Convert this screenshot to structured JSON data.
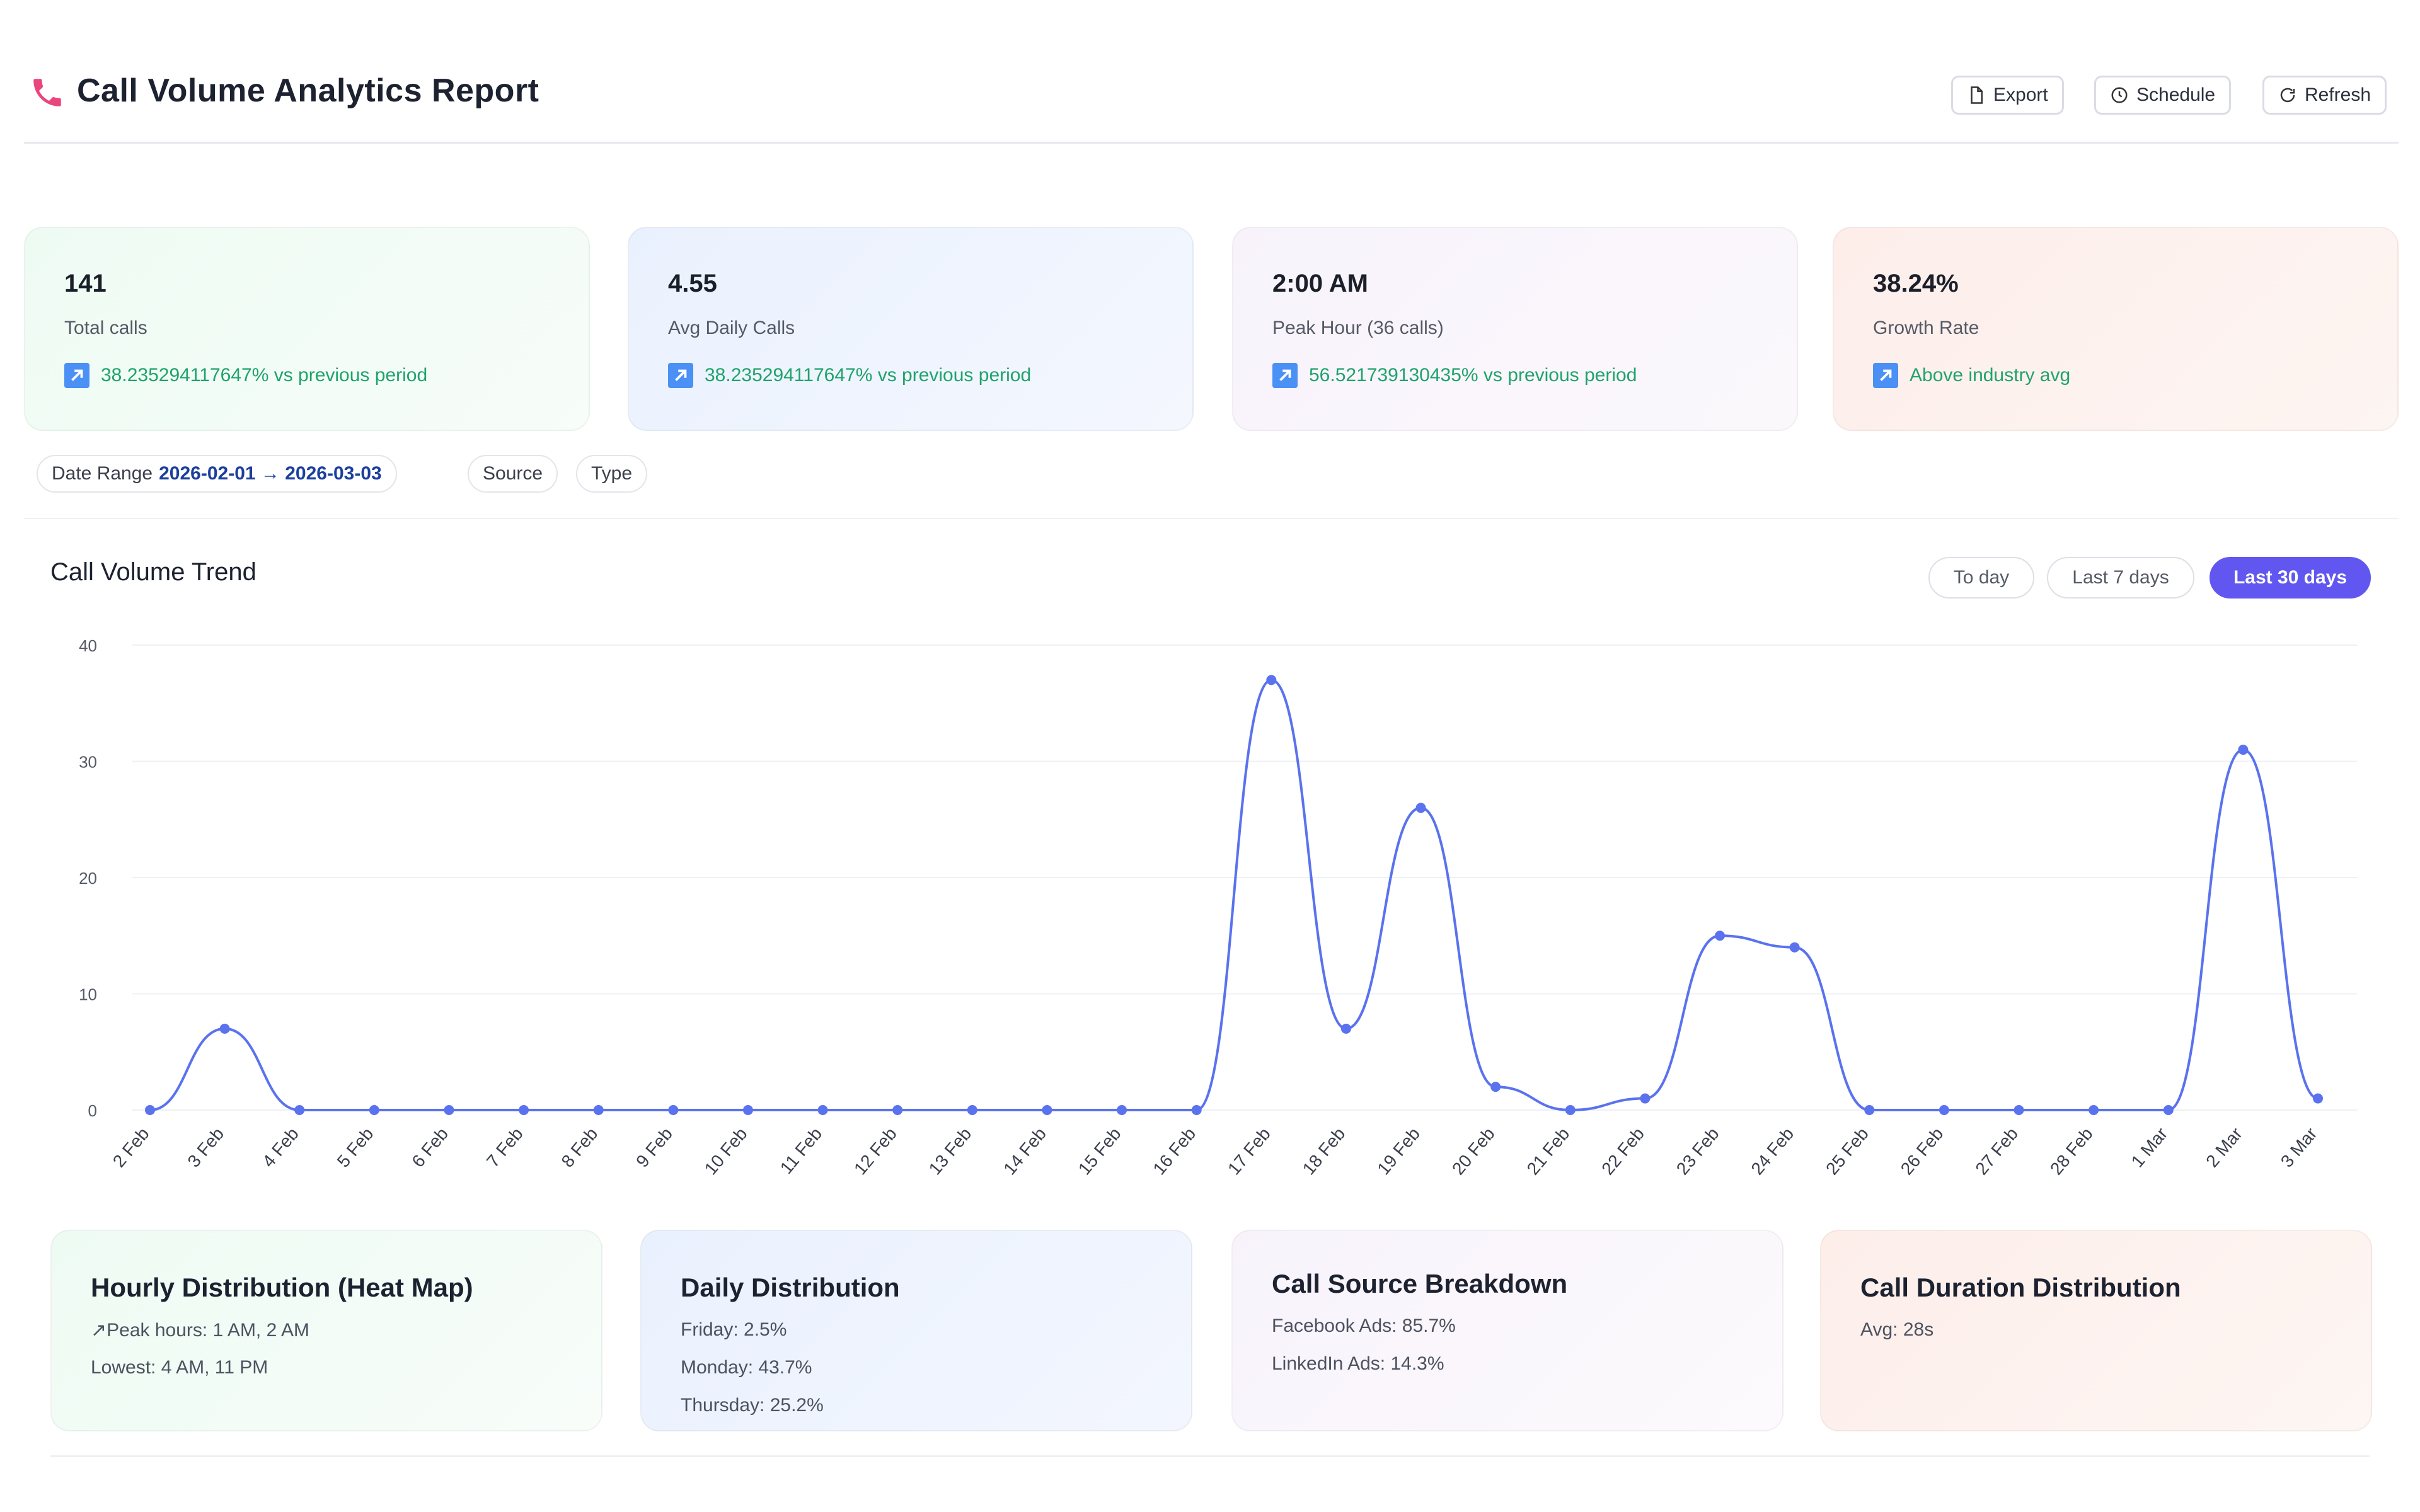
{
  "header": {
    "title": "Call Volume Analytics Report",
    "buttons": {
      "export": "Export",
      "schedule": "Schedule",
      "refresh": "Refresh"
    }
  },
  "kpis": [
    {
      "value": "141",
      "label": "Total calls",
      "trend": "38.235294117647% vs previous period"
    },
    {
      "value": "4.55",
      "label": "Avg Daily Calls",
      "trend": "38.235294117647% vs previous period"
    },
    {
      "value": "2:00 AM",
      "label": "Peak Hour (36 calls)",
      "trend": "56.521739130435% vs previous period"
    },
    {
      "value": "38.24%",
      "label": "Growth Rate",
      "trend": "Above industry avg"
    }
  ],
  "filters": {
    "date_range_label": "Date Range",
    "date_range_value": "2026-02-01 → 2026-03-03",
    "source": "Source",
    "type": "Type"
  },
  "chart_panel": {
    "title": "Call Volume Trend",
    "ranges": {
      "today": "To day",
      "last7": "Last 7 days",
      "last30": "Last 30 days"
    }
  },
  "chart_data": {
    "type": "line",
    "title": "Call Volume Trend",
    "xlabel": "",
    "ylabel": "",
    "ylim": [
      0,
      40
    ],
    "yticks": [
      0,
      10,
      20,
      30,
      40
    ],
    "grid": true,
    "categories": [
      "2 Feb",
      "3 Feb",
      "4 Feb",
      "5 Feb",
      "6 Feb",
      "7 Feb",
      "8 Feb",
      "9 Feb",
      "10 Feb",
      "11 Feb",
      "12 Feb",
      "13 Feb",
      "14 Feb",
      "15 Feb",
      "16 Feb",
      "17 Feb",
      "18 Feb",
      "19 Feb",
      "20 Feb",
      "21 Feb",
      "22 Feb",
      "23 Feb",
      "24 Feb",
      "25 Feb",
      "26 Feb",
      "27 Feb",
      "28 Feb",
      "1 Mar",
      "2 Mar",
      "3 Mar"
    ],
    "values": [
      0,
      7,
      0,
      0,
      0,
      0,
      0,
      0,
      0,
      0,
      0,
      0,
      0,
      0,
      0,
      37,
      7,
      26,
      2,
      0,
      1,
      15,
      14,
      0,
      0,
      0,
      0,
      0,
      31,
      1
    ],
    "color": "#5a72ee"
  },
  "bottom_cards": [
    {
      "title": "Hourly Distribution (Heat Map)",
      "lines": [
        "↗Peak hours: 1 AM, 2 AM",
        "Lowest: 4 AM, 11 PM"
      ]
    },
    {
      "title": "Daily Distribution",
      "lines": [
        "Friday: 2.5%",
        "Monday: 43.7%",
        "Thursday: 25.2%"
      ]
    },
    {
      "title": "Call Source Breakdown",
      "lines": [
        "Facebook Ads: 85.7%",
        "LinkedIn Ads: 14.3%"
      ]
    },
    {
      "title": "Call Duration Distribution",
      "lines": [
        "Avg: 28s"
      ]
    }
  ],
  "colors": {
    "accent": "#6157f0",
    "line": "#5a72ee",
    "positive": "#1fa36b",
    "phone_icon": "#e8467c"
  },
  "icons": {
    "title": "phone-icon",
    "export": "file-icon",
    "schedule": "clock-icon",
    "refresh": "refresh-icon",
    "trend": "trend-up-icon"
  }
}
